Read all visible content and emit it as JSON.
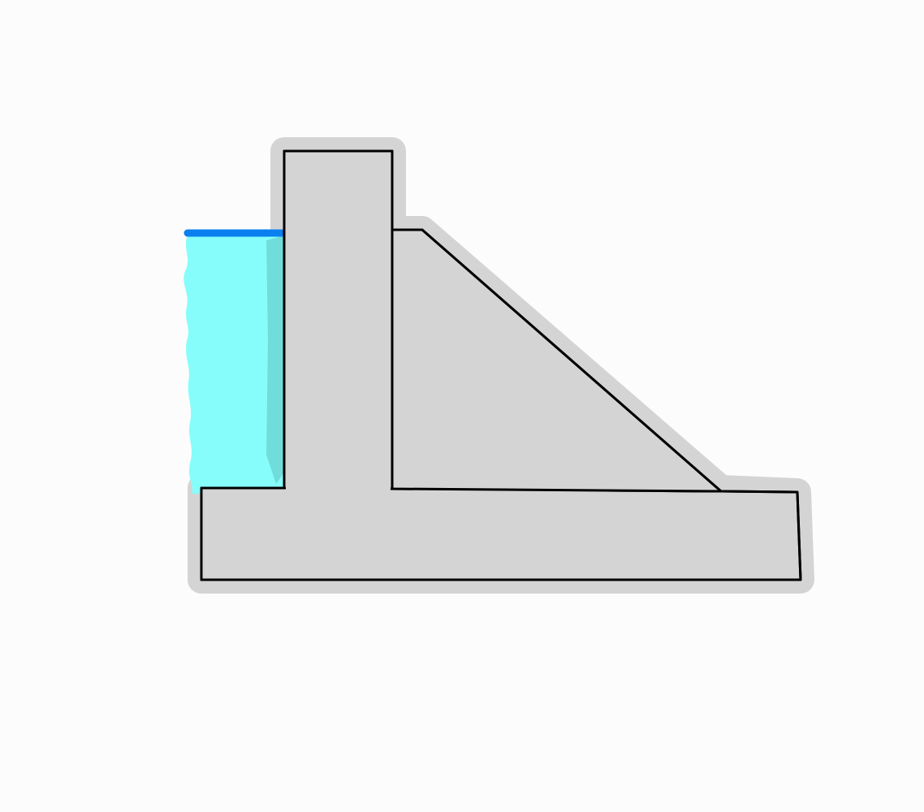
{
  "colors": {
    "background": "#fcfcfc",
    "structure_fill": "#d4d4d4",
    "structure_outline": "#000000",
    "water_fill": "#86fdfb",
    "water_surface": "#0a7ff0"
  }
}
